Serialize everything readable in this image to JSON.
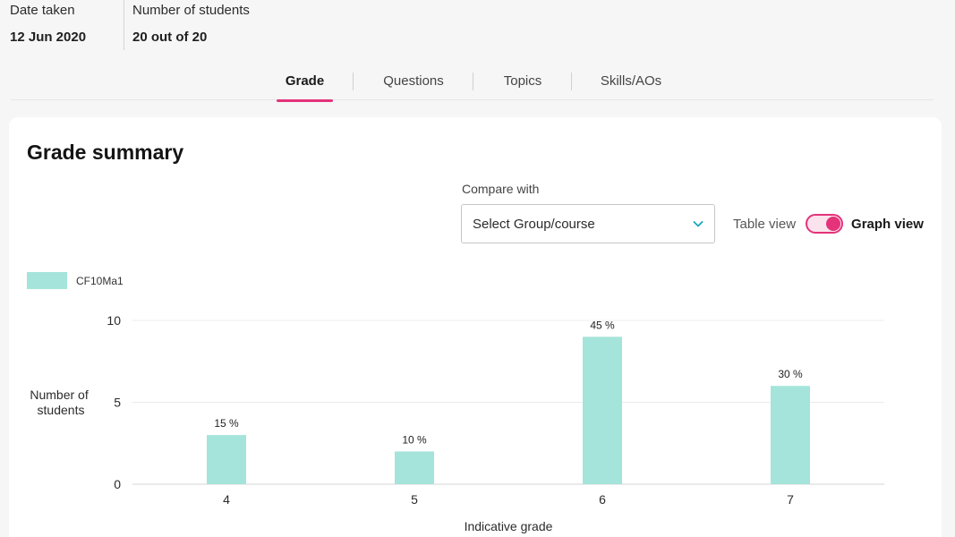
{
  "header": {
    "date_taken_label": "Date taken",
    "date_taken_value": "12 Jun 2020",
    "students_label": "Number of students",
    "students_value": "20 out of 20"
  },
  "tabs": [
    {
      "label": "Grade",
      "active": true
    },
    {
      "label": "Questions",
      "active": false
    },
    {
      "label": "Topics",
      "active": false
    },
    {
      "label": "Skills/AOs",
      "active": false
    }
  ],
  "summary": {
    "title": "Grade summary",
    "compare_label": "Compare with",
    "select_value": "Select Group/course",
    "table_view_label": "Table view",
    "graph_view_label": "Graph view",
    "graph_view_on": true
  },
  "colors": {
    "accent": "#e4337a",
    "bar": "#a5e4da"
  },
  "chart_data": {
    "type": "bar",
    "categories": [
      "4",
      "5",
      "6",
      "7"
    ],
    "series": [
      {
        "name": "CF10Ma1",
        "values": [
          3,
          2,
          9,
          6
        ],
        "labels": [
          "15 %",
          "10 %",
          "45 %",
          "30 %"
        ]
      }
    ],
    "xlabel": "Indicative grade",
    "ylabel": "Number of students",
    "ylim": [
      0,
      10
    ],
    "yticks": [
      0,
      5,
      10
    ],
    "grid": true,
    "legend": "top-left"
  }
}
